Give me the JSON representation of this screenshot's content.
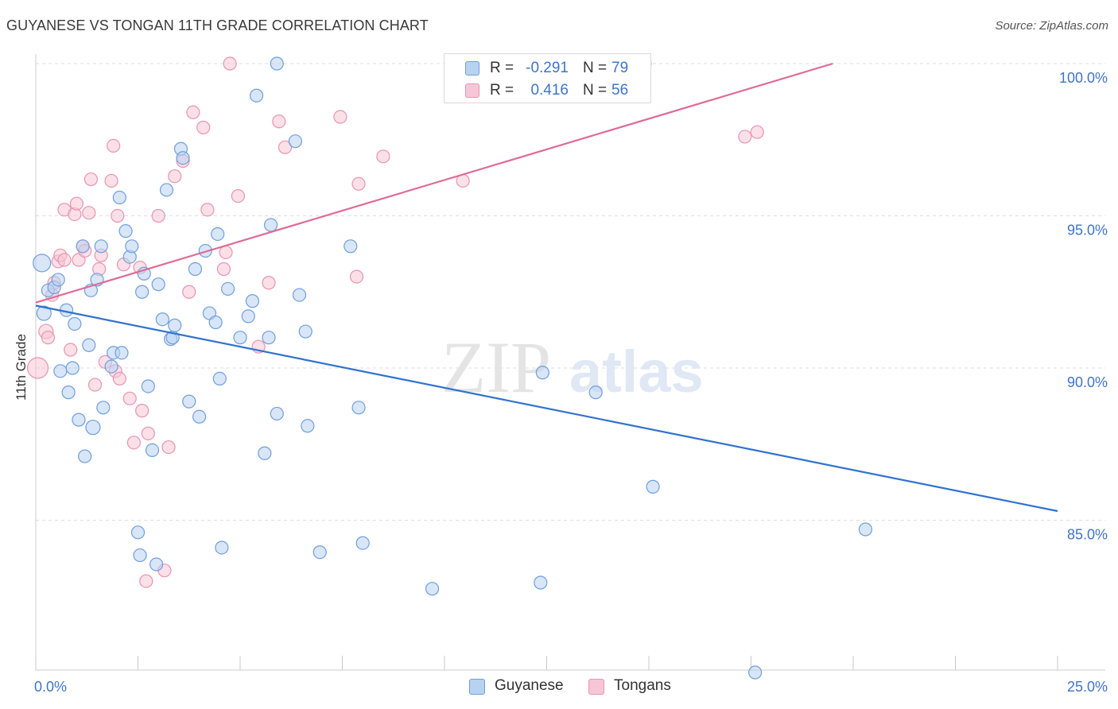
{
  "header": {
    "title": "GUYANESE VS TONGAN 11TH GRADE CORRELATION CHART",
    "source": "Source: ZipAtlas.com"
  },
  "watermark": {
    "part1": "ZIP",
    "part2": "atlas"
  },
  "legend": {
    "guyanese": {
      "r_label": "R =",
      "r_value": "-0.291",
      "n_label": "N =",
      "n_value": "79"
    },
    "tongans": {
      "r_label": "R =",
      "r_value": "0.416",
      "n_label": "N =",
      "n_value": "56"
    }
  },
  "colors": {
    "guyanese_fill": "#b8d2f2",
    "guyanese_stroke": "#6f9fdc",
    "guyanese_line": "#2f72d0",
    "tongans_fill": "#f7c6d6",
    "tongans_stroke": "#e894b0",
    "tongans_line": "#e06b93",
    "grid": "#dddddd",
    "axis_text": "#3f74c9"
  },
  "chart_data": {
    "type": "scatter",
    "title": "GUYANESE VS TONGAN 11TH GRADE CORRELATION CHART",
    "xlabel": "",
    "ylabel": "11th Grade",
    "xlim": [
      0,
      25
    ],
    "ylim": [
      80.0,
      101.0
    ],
    "x_tick_labels": [
      "0.0%",
      "25.0%"
    ],
    "y_ticks": [
      85,
      90,
      95,
      100
    ],
    "y_tick_labels": [
      "85.0%",
      "90.0%",
      "95.0%",
      "100.0%"
    ],
    "grid": true,
    "legend_position": "top-center",
    "series": [
      {
        "name": "Guyanese",
        "r": -0.291,
        "n": 79,
        "trend": {
          "x": [
            0,
            25
          ],
          "y": [
            92.05,
            85.3
          ]
        },
        "points": [
          [
            0.15,
            93.45,
            11
          ],
          [
            0.2,
            91.8,
            9
          ],
          [
            0.3,
            92.55,
            8
          ],
          [
            0.45,
            92.65,
            8
          ],
          [
            0.55,
            92.9,
            8
          ],
          [
            0.6,
            89.9,
            8
          ],
          [
            0.75,
            91.9,
            8
          ],
          [
            0.8,
            89.2,
            8
          ],
          [
            0.9,
            90.0,
            8
          ],
          [
            0.95,
            91.45,
            8
          ],
          [
            1.05,
            88.3,
            8
          ],
          [
            1.15,
            94.0,
            8
          ],
          [
            1.2,
            87.1,
            8
          ],
          [
            1.3,
            90.75,
            8
          ],
          [
            1.35,
            92.55,
            8
          ],
          [
            1.4,
            88.05,
            9
          ],
          [
            1.5,
            92.9,
            8
          ],
          [
            1.6,
            94.0,
            8
          ],
          [
            1.65,
            88.7,
            8
          ],
          [
            1.85,
            90.05,
            8
          ],
          [
            1.9,
            90.5,
            8
          ],
          [
            2.05,
            95.6,
            8
          ],
          [
            2.1,
            90.5,
            8
          ],
          [
            2.2,
            94.5,
            8
          ],
          [
            2.3,
            93.65,
            8
          ],
          [
            2.35,
            94.0,
            8
          ],
          [
            2.5,
            84.6,
            8
          ],
          [
            2.55,
            83.85,
            8
          ],
          [
            2.6,
            92.5,
            8
          ],
          [
            2.65,
            93.1,
            8
          ],
          [
            2.75,
            89.4,
            8
          ],
          [
            2.85,
            87.3,
            8
          ],
          [
            2.95,
            83.55,
            8
          ],
          [
            3.0,
            92.75,
            8
          ],
          [
            3.1,
            91.6,
            8
          ],
          [
            3.2,
            95.85,
            8
          ],
          [
            3.3,
            90.95,
            8
          ],
          [
            3.35,
            91.0,
            8
          ],
          [
            3.4,
            91.4,
            8
          ],
          [
            3.55,
            97.2,
            8
          ],
          [
            3.6,
            96.9,
            8
          ],
          [
            3.75,
            88.9,
            8
          ],
          [
            3.9,
            93.25,
            8
          ],
          [
            4.0,
            88.4,
            8
          ],
          [
            4.15,
            93.85,
            8
          ],
          [
            4.25,
            91.8,
            8
          ],
          [
            4.4,
            91.5,
            8
          ],
          [
            4.45,
            94.4,
            8
          ],
          [
            4.55,
            84.1,
            8
          ],
          [
            4.7,
            92.6,
            8
          ],
          [
            4.5,
            89.65,
            8
          ],
          [
            5.0,
            91.0,
            8
          ],
          [
            5.2,
            91.7,
            8
          ],
          [
            5.3,
            92.2,
            8
          ],
          [
            5.4,
            98.95,
            8
          ],
          [
            5.6,
            87.2,
            8
          ],
          [
            5.7,
            91.0,
            8
          ],
          [
            5.75,
            94.7,
            8
          ],
          [
            5.9,
            100.0,
            8
          ],
          [
            5.9,
            88.5,
            8
          ],
          [
            6.35,
            97.45,
            8
          ],
          [
            6.45,
            92.4,
            8
          ],
          [
            6.6,
            91.2,
            8
          ],
          [
            6.65,
            88.1,
            8
          ],
          [
            6.95,
            83.95,
            8
          ],
          [
            7.7,
            94.0,
            8
          ],
          [
            7.9,
            88.7,
            8
          ],
          [
            8.0,
            84.25,
            8
          ],
          [
            9.7,
            82.75,
            8
          ],
          [
            12.35,
            82.95,
            8
          ],
          [
            12.4,
            89.85,
            8
          ],
          [
            13.7,
            89.2,
            8
          ],
          [
            14.9,
            100.0,
            8
          ],
          [
            15.1,
            86.1,
            8
          ],
          [
            17.6,
            80.0,
            8
          ],
          [
            20.3,
            84.7,
            8
          ]
        ]
      },
      {
        "name": "Tongans",
        "r": 0.416,
        "n": 56,
        "trend": {
          "x": [
            0,
            19.5
          ],
          "y": [
            92.15,
            100.0
          ]
        },
        "points": [
          [
            0.05,
            90.0,
            13
          ],
          [
            0.25,
            91.2,
            9
          ],
          [
            0.3,
            91.0,
            8
          ],
          [
            0.4,
            92.4,
            8
          ],
          [
            0.45,
            92.8,
            8
          ],
          [
            0.55,
            93.5,
            8
          ],
          [
            0.6,
            93.7,
            8
          ],
          [
            0.7,
            93.55,
            8
          ],
          [
            0.7,
            95.2,
            8
          ],
          [
            0.85,
            90.6,
            8
          ],
          [
            0.95,
            95.05,
            8
          ],
          [
            1.0,
            95.4,
            8
          ],
          [
            1.05,
            93.55,
            8
          ],
          [
            1.15,
            94.0,
            8
          ],
          [
            1.2,
            93.85,
            8
          ],
          [
            1.3,
            95.1,
            8
          ],
          [
            1.35,
            96.2,
            8
          ],
          [
            1.45,
            89.45,
            8
          ],
          [
            1.55,
            93.25,
            8
          ],
          [
            1.6,
            93.7,
            8
          ],
          [
            1.7,
            90.2,
            8
          ],
          [
            1.85,
            96.15,
            8
          ],
          [
            1.9,
            97.3,
            8
          ],
          [
            1.95,
            89.9,
            8
          ],
          [
            2.0,
            95.0,
            8
          ],
          [
            2.05,
            89.65,
            8
          ],
          [
            2.15,
            93.4,
            8
          ],
          [
            2.3,
            89.0,
            8
          ],
          [
            2.4,
            87.55,
            8
          ],
          [
            2.55,
            93.3,
            8
          ],
          [
            2.6,
            88.6,
            8
          ],
          [
            2.7,
            83.0,
            8
          ],
          [
            2.75,
            87.85,
            8
          ],
          [
            3.0,
            95.0,
            8
          ],
          [
            3.15,
            83.35,
            8
          ],
          [
            3.25,
            87.4,
            8
          ],
          [
            3.4,
            96.3,
            8
          ],
          [
            3.6,
            96.8,
            8
          ],
          [
            3.75,
            92.5,
            8
          ],
          [
            3.85,
            98.4,
            8
          ],
          [
            4.1,
            97.9,
            8
          ],
          [
            4.2,
            95.2,
            8
          ],
          [
            4.6,
            93.25,
            8
          ],
          [
            4.65,
            93.8,
            8
          ],
          [
            4.75,
            100.0,
            8
          ],
          [
            4.95,
            95.65,
            8
          ],
          [
            5.45,
            90.7,
            8
          ],
          [
            5.7,
            92.8,
            8
          ],
          [
            5.95,
            98.1,
            8
          ],
          [
            6.1,
            97.25,
            8
          ],
          [
            7.45,
            98.25,
            8
          ],
          [
            7.85,
            93.0,
            8
          ],
          [
            7.9,
            96.05,
            8
          ],
          [
            8.5,
            96.95,
            8
          ],
          [
            10.45,
            96.15,
            8
          ],
          [
            17.35,
            97.6,
            8
          ],
          [
            17.65,
            97.75,
            8
          ]
        ]
      }
    ]
  }
}
